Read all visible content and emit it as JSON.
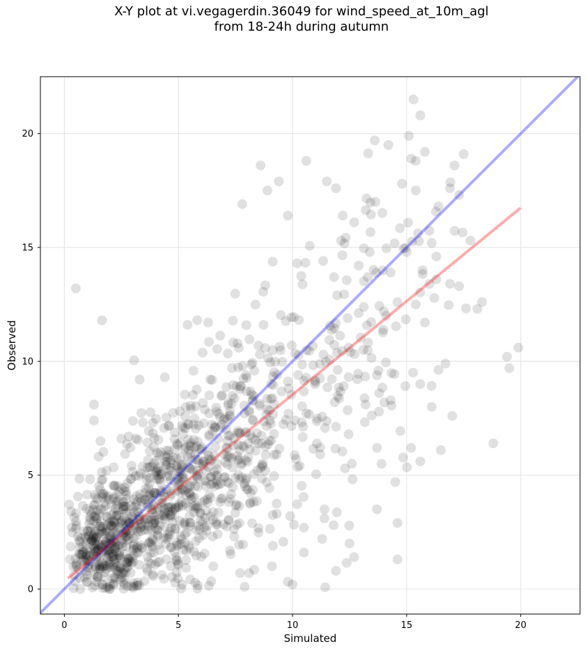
{
  "title_line1": "X-Y plot at vi.vegagerdin.36049 for wind_speed_at_10m_agl",
  "title_line2": "from 18-24h during autumn",
  "chart_data": {
    "type": "scatter",
    "xlabel": "Simulated",
    "ylabel": "Observed",
    "xlim": [
      -1.05,
      22.6
    ],
    "ylim": [
      -1.1,
      22.5
    ],
    "xticks": [
      0,
      5,
      10,
      15,
      20
    ],
    "yticks": [
      0,
      5,
      10,
      15,
      20
    ],
    "grid": true,
    "colors": {
      "points": "#000000",
      "identity_line": "#0000ff",
      "fit_line": "#ff0000",
      "grid": "#e6e6e6"
    },
    "points_alpha": 0.12,
    "lines": [
      {
        "role": "identity",
        "x": [
          -1.05,
          22.6
        ],
        "y": [
          -1.05,
          22.6
        ]
      },
      {
        "role": "regression",
        "x": [
          0.2,
          19.95
        ],
        "y": [
          0.5,
          16.7
        ]
      }
    ],
    "points_outliers": [
      [
        0.5,
        13.2
      ],
      [
        1.65,
        11.8
      ],
      [
        5.4,
        11.6
      ],
      [
        7.8,
        16.9
      ],
      [
        8.6,
        18.6
      ],
      [
        8.9,
        17.5
      ],
      [
        9.4,
        17.9
      ],
      [
        11.5,
        17.9
      ],
      [
        11.9,
        17.6
      ],
      [
        18.8,
        6.4
      ],
      [
        19.9,
        10.6
      ],
      [
        19.4,
        10.2
      ],
      [
        19.5,
        9.7
      ],
      [
        18.3,
        12.6
      ],
      [
        17.8,
        15.3
      ],
      [
        10.0,
        0.2
      ],
      [
        10.5,
        1.6
      ],
      [
        11.9,
        0.8
      ],
      [
        13.7,
        3.5
      ],
      [
        14.6,
        2.9
      ],
      [
        14.6,
        1.3
      ],
      [
        15.3,
        21.5
      ],
      [
        15.6,
        20.8
      ],
      [
        15.1,
        19.9
      ],
      [
        13.6,
        19.7
      ],
      [
        14.2,
        19.5
      ],
      [
        12.2,
        16.4
      ],
      [
        12.7,
        16.1
      ],
      [
        10.6,
        18.8
      ],
      [
        9.8,
        16.4
      ],
      [
        17.5,
        19.1
      ],
      [
        16.9,
        17.6
      ],
      [
        17.3,
        17.3
      ],
      [
        17.1,
        18.6
      ],
      [
        16.7,
        9.9
      ],
      [
        16.5,
        6.1
      ],
      [
        17.0,
        7.6
      ],
      [
        15.6,
        5.6
      ],
      [
        15.2,
        6.2
      ],
      [
        14.5,
        4.7
      ],
      [
        12.5,
        2.0
      ],
      [
        12.7,
        1.4
      ],
      [
        11.4,
        3.1
      ],
      [
        11.4,
        3.5
      ],
      [
        11.8,
        2.8
      ],
      [
        11.3,
        2.2
      ],
      [
        10.5,
        2.7
      ],
      [
        9.9,
        3.2
      ],
      [
        3.3,
        9.2
      ],
      [
        2.5,
        6.6
      ],
      [
        1.3,
        7.4
      ],
      [
        1.3,
        8.1
      ],
      [
        4.4,
        9.3
      ],
      [
        6.3,
        11.7
      ],
      [
        2.0,
        0.0
      ],
      [
        1.0,
        0.3
      ],
      [
        0.7,
        0.0
      ],
      [
        7.9,
        0.1
      ],
      [
        7.7,
        0.7
      ],
      [
        8.1,
        0.7
      ],
      [
        9.1,
        1.0
      ],
      [
        13.3,
        13.7
      ],
      [
        14.3,
        13.9
      ],
      [
        15.0,
        14.8
      ],
      [
        15.7,
        14.0
      ],
      [
        14.0,
        12.2
      ],
      [
        13.1,
        10.5
      ],
      [
        13.8,
        8.6
      ],
      [
        13.2,
        8.1
      ],
      [
        13.9,
        5.5
      ],
      [
        13.7,
        6.2
      ],
      [
        12.3,
        5.3
      ],
      [
        12.6,
        5.5
      ],
      [
        16.1,
        8.0
      ],
      [
        15.6,
        9.0
      ],
      [
        16.3,
        13.6
      ],
      [
        16.9,
        13.4
      ],
      [
        17.3,
        13.3
      ],
      [
        18.1,
        12.3
      ],
      [
        16.3,
        14.6
      ],
      [
        15.8,
        11.7
      ],
      [
        14.1,
        12.0
      ],
      [
        14.6,
        12.6
      ],
      [
        15.4,
        12.5
      ],
      [
        16.1,
        15.2
      ],
      [
        15.4,
        17.5
      ],
      [
        16.4,
        16.8
      ],
      [
        15.8,
        19.2
      ],
      [
        15.4,
        18.8
      ],
      [
        14.8,
        17.8
      ]
    ],
    "cluster_specs": [
      {
        "center": [
          1.8,
          1.8
        ],
        "spread": [
          0.9,
          1.1
        ],
        "count": 320
      },
      {
        "center": [
          3.8,
          3.2
        ],
        "spread": [
          1.3,
          1.6
        ],
        "count": 320
      },
      {
        "center": [
          6.0,
          5.2
        ],
        "spread": [
          1.5,
          1.8
        ],
        "count": 280
      },
      {
        "center": [
          8.5,
          7.5
        ],
        "spread": [
          1.6,
          2.3
        ],
        "count": 170
      },
      {
        "center": [
          11.5,
          10.0
        ],
        "spread": [
          1.6,
          2.6
        ],
        "count": 90
      },
      {
        "center": [
          14.5,
          13.5
        ],
        "spread": [
          1.6,
          3.2
        ],
        "count": 60
      }
    ]
  }
}
